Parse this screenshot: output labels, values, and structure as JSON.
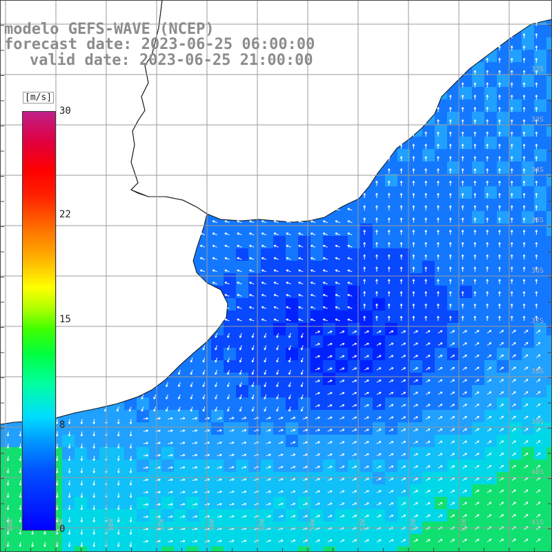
{
  "title": {
    "line1": "modelo GEFS-WAVE (NCEP)",
    "line2": "forecast date: 2023-06-25 06:00:00",
    "line3": "valid date: 2023-06-25 21:00:00"
  },
  "colorbar": {
    "unit": "[m/s]",
    "ticks": [
      "30",
      "22",
      "15",
      "8",
      "0"
    ],
    "tick_values": [
      30,
      22,
      15,
      8,
      0
    ],
    "range": [
      0,
      30
    ],
    "colors": [
      "#0000ff",
      "#00a0ff",
      "#00dcff",
      "#00ff40",
      "#ffff00",
      "#ff7000",
      "#ff0000",
      "#c0208a"
    ]
  },
  "map": {
    "lat_labels": [
      "32S",
      "33S",
      "34S",
      "35S",
      "36S",
      "37S",
      "38S",
      "39S",
      "40S",
      "41S"
    ],
    "lon_labels": [
      "60W",
      "59W",
      "58W",
      "57W",
      "56W",
      "55W",
      "54W",
      "53W",
      "52W",
      "51W"
    ],
    "ocean_color": "#1a8cff",
    "land_color": "#ffffff",
    "arrow_color": "#ffffff",
    "grid_color": "#9a9a9a"
  }
}
